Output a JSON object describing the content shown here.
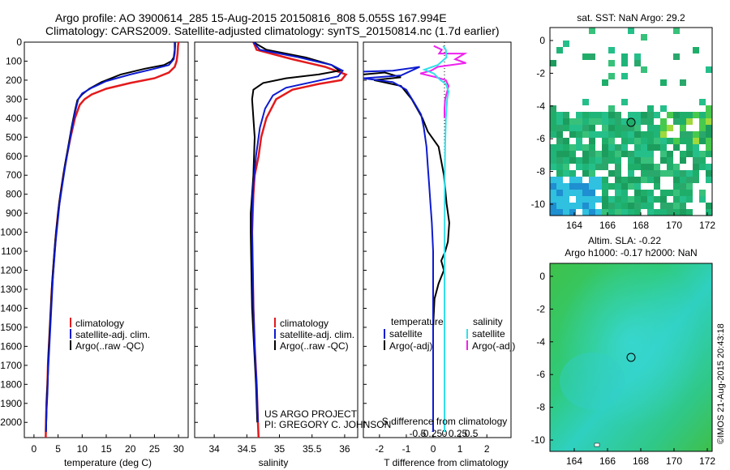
{
  "header": {
    "line1": "Argo profile: AO 3900614_285 15-Aug-2015 20150816_808 5.055S 167.994E",
    "line2": "Climatology: CARS2009. Satellite-adjusted climatology: synTS_20150814.nc (1.7d earlier)"
  },
  "colors": {
    "climatology": "#e31a1c",
    "satellite": "#0d1bd0",
    "argo": "#000000",
    "sal_sat": "#33e0ea",
    "sal_argo": "#ee22ee"
  },
  "depth_ticks": [
    "0",
    "100",
    "200",
    "300",
    "400",
    "500",
    "600",
    "700",
    "800",
    "900",
    "1000",
    "1100",
    "1200",
    "1300",
    "1400",
    "1500",
    "1600",
    "1700",
    "1800",
    "1900",
    "2000"
  ],
  "temperature_panel": {
    "xlabel": "temperature (deg C)",
    "xticks": [
      "0",
      "5",
      "10",
      "15",
      "20",
      "25",
      "30"
    ],
    "legend": [
      "climatology",
      "satellite-adj. clim.",
      "Argo(..raw -QC)"
    ]
  },
  "salinity_panel": {
    "xlabel": "salinity",
    "xticks": [
      "34",
      "34.5",
      "35",
      "35.5",
      "36"
    ],
    "legend": [
      "climatology",
      "satellite-adj. clim.",
      "Argo(..raw -QC)"
    ],
    "credit1": "US ARGO PROJECT",
    "credit2": "PI: GREGORY C. JOHNSON"
  },
  "difference_panel": {
    "xlabel": "T difference from climatology",
    "top_label": "S difference from climatology",
    "top_ticks": [
      "-0.5",
      "-0.25",
      "0",
      "0.25",
      "0.5"
    ],
    "xticks": [
      "-2",
      "-1",
      "0",
      "1",
      "2"
    ],
    "legend_temp_title": "temperature",
    "legend_sal_title": "salinity",
    "legend_temp": [
      "satellite",
      "Argo(-adj)"
    ],
    "legend_sal": [
      "satellite",
      "Argo(-adj)"
    ]
  },
  "sst_map": {
    "title": "sat. SST: NaN Argo: 29.2",
    "yticks": [
      "0",
      "-2",
      "-4",
      "-6",
      "-8",
      "-10"
    ],
    "xticks": [
      "164",
      "166",
      "168",
      "170",
      "172"
    ]
  },
  "sla_map": {
    "title1": "Altim. SLA: -0.22",
    "title2": "Argo h1000: -0.17 h2000: NaN",
    "yticks": [
      "0",
      "-2",
      "-4",
      "-6",
      "-8",
      "-10"
    ],
    "xticks": [
      "164",
      "166",
      "168",
      "170",
      "172"
    ]
  },
  "imos_stamp": "©IMOS 21-Aug-2015 20:43:18",
  "chart_data": [
    {
      "type": "line",
      "title": "",
      "xlabel": "temperature (deg C)",
      "ylabel": "",
      "xlim": [
        -2,
        32
      ],
      "ylim": [
        2080,
        0
      ],
      "series": [
        {
          "name": "climatology",
          "points": [
            [
              30,
              0
            ],
            [
              29.9,
              20
            ],
            [
              29.8,
              60
            ],
            [
              29.6,
              100
            ],
            [
              29.2,
              130
            ],
            [
              28,
              160
            ],
            [
              25,
              190
            ],
            [
              20,
              215
            ],
            [
              15,
              245
            ],
            [
              12,
              275
            ],
            [
              10.5,
              300
            ],
            [
              9.5,
              330
            ],
            [
              8.5,
              400
            ],
            [
              7.6,
              500
            ],
            [
              6.8,
              600
            ],
            [
              6.1,
              700
            ],
            [
              5.5,
              800
            ],
            [
              5,
              900
            ],
            [
              4.6,
              1000
            ],
            [
              4.3,
              1100
            ],
            [
              4,
              1200
            ],
            [
              3.7,
              1300
            ],
            [
              3.5,
              1400
            ],
            [
              3.3,
              1500
            ],
            [
              3.1,
              1600
            ],
            [
              2.9,
              1700
            ],
            [
              2.8,
              1800
            ],
            [
              2.6,
              1900
            ],
            [
              2.5,
              2000
            ],
            [
              2.45,
              2080
            ]
          ]
        },
        {
          "name": "satellite-adj. clim.",
          "points": [
            [
              29.3,
              0
            ],
            [
              29.3,
              20
            ],
            [
              29.2,
              60
            ],
            [
              29,
              90
            ],
            [
              28,
              120
            ],
            [
              25,
              140
            ],
            [
              20,
              170
            ],
            [
              15,
              205
            ],
            [
              12,
              240
            ],
            [
              10,
              270
            ],
            [
              9.2,
              300
            ],
            [
              8.6,
              360
            ],
            [
              7.9,
              450
            ],
            [
              7.2,
              550
            ],
            [
              6.5,
              650
            ],
            [
              5.9,
              750
            ],
            [
              5.3,
              850
            ],
            [
              4.9,
              950
            ],
            [
              4.5,
              1050
            ],
            [
              4.2,
              1150
            ],
            [
              3.9,
              1250
            ],
            [
              3.7,
              1350
            ],
            [
              3.5,
              1450
            ],
            [
              3.3,
              1550
            ],
            [
              3.1,
              1650
            ],
            [
              2.9,
              1750
            ],
            [
              2.8,
              1850
            ],
            [
              2.6,
              1950
            ],
            [
              2.5,
              2050
            ]
          ]
        },
        {
          "name": "Argo(..raw -QC)",
          "points": [
            [
              29.2,
              0
            ],
            [
              29.2,
              40
            ],
            [
              29,
              80
            ],
            [
              28.5,
              100
            ],
            [
              27,
              120
            ],
            [
              23,
              140
            ],
            [
              18,
              170
            ],
            [
              14,
              210
            ],
            [
              11.5,
              245
            ],
            [
              10,
              275
            ],
            [
              9,
              305
            ],
            [
              8.5,
              360
            ],
            [
              7.8,
              450
            ],
            [
              7.1,
              550
            ],
            [
              6.4,
              650
            ],
            [
              5.8,
              750
            ],
            [
              5.2,
              850
            ],
            [
              4.8,
              950
            ],
            [
              4.4,
              1050
            ],
            [
              4.1,
              1150
            ],
            [
              3.8,
              1250
            ],
            [
              3.6,
              1350
            ],
            [
              3.4,
              1450
            ],
            [
              3.2,
              1550
            ],
            [
              3,
              1650
            ],
            [
              2.9,
              1750
            ],
            [
              2.7,
              1850
            ],
            [
              2.6,
              1950
            ],
            [
              2.5,
              2050
            ]
          ]
        }
      ]
    },
    {
      "type": "line",
      "title": "",
      "xlabel": "salinity",
      "ylabel": "",
      "xlim": [
        33.7,
        36.2
      ],
      "ylim": [
        2080,
        0
      ],
      "series": [
        {
          "name": "climatology",
          "points": [
            [
              34.6,
              0
            ],
            [
              34.65,
              40
            ],
            [
              35.2,
              90
            ],
            [
              35.7,
              130
            ],
            [
              36.02,
              170
            ],
            [
              35.95,
              200
            ],
            [
              35.6,
              220
            ],
            [
              35.2,
              250
            ],
            [
              34.95,
              300
            ],
            [
              34.8,
              400
            ],
            [
              34.72,
              500
            ],
            [
              34.68,
              600
            ],
            [
              34.62,
              700
            ],
            [
              34.6,
              800
            ],
            [
              34.59,
              900
            ],
            [
              34.58,
              1000
            ],
            [
              34.59,
              1200
            ],
            [
              34.6,
              1400
            ],
            [
              34.62,
              1600
            ],
            [
              34.65,
              1800
            ],
            [
              34.67,
              2000
            ],
            [
              34.68,
              2080
            ]
          ]
        },
        {
          "name": "satellite-adj. clim.",
          "points": [
            [
              34.6,
              0
            ],
            [
              34.7,
              40
            ],
            [
              35.3,
              80
            ],
            [
              35.8,
              120
            ],
            [
              35.97,
              150
            ],
            [
              35.9,
              180
            ],
            [
              35.5,
              210
            ],
            [
              35.1,
              240
            ],
            [
              34.9,
              280
            ],
            [
              34.78,
              350
            ],
            [
              34.7,
              450
            ],
            [
              34.64,
              600
            ],
            [
              34.6,
              750
            ],
            [
              34.58,
              900
            ],
            [
              34.58,
              1000
            ],
            [
              34.59,
              1200
            ],
            [
              34.6,
              1400
            ],
            [
              34.62,
              1600
            ],
            [
              34.65,
              1800
            ],
            [
              34.67,
              2000
            ]
          ]
        },
        {
          "name": "Argo(..raw -QC)",
          "points": [
            [
              34.6,
              0
            ],
            [
              34.8,
              40
            ],
            [
              35.4,
              80
            ],
            [
              35.8,
              120
            ],
            [
              35.92,
              150
            ],
            [
              35.6,
              170
            ],
            [
              35.1,
              190
            ],
            [
              34.75,
              215
            ],
            [
              34.6,
              250
            ],
            [
              34.58,
              300
            ],
            [
              34.6,
              400
            ],
            [
              34.62,
              500
            ],
            [
              34.61,
              600
            ],
            [
              34.6,
              700
            ],
            [
              34.58,
              800
            ],
            [
              34.56,
              900
            ],
            [
              34.56,
              1000
            ],
            [
              34.57,
              1200
            ],
            [
              34.58,
              1400
            ],
            [
              34.61,
              1600
            ],
            [
              34.64,
              1800
            ],
            [
              34.66,
              2000
            ]
          ]
        }
      ]
    },
    {
      "type": "line",
      "title": "",
      "xlabel": "T difference from climatology",
      "ylabel": "",
      "xlim": [
        -2.6,
        2.9
      ],
      "ylim": [
        2080,
        0
      ],
      "series": [
        {
          "name": "temperature satellite",
          "points": [
            [
              -2.6,
              155
            ],
            [
              -1.5,
              150
            ],
            [
              -0.5,
              130
            ],
            [
              -1.2,
              175
            ],
            [
              -2.6,
              190
            ],
            [
              -1.5,
              210
            ],
            [
              -1,
              250
            ],
            [
              -0.7,
              320
            ],
            [
              -0.45,
              380
            ],
            [
              -0.35,
              450
            ],
            [
              -0.25,
              550
            ],
            [
              -0.2,
              650
            ],
            [
              -0.15,
              750
            ],
            [
              -0.1,
              850
            ],
            [
              -0.05,
              950
            ],
            [
              0,
              1100
            ],
            [
              0,
              1300
            ],
            [
              0,
              1500
            ],
            [
              0,
              1700
            ],
            [
              0,
              1900
            ],
            [
              0,
              2050
            ]
          ]
        },
        {
          "name": "temperature Argo(-adj)",
          "points": [
            [
              -2.6,
              170
            ],
            [
              -1.8,
              160
            ],
            [
              -1.2,
              185
            ],
            [
              -2.2,
              200
            ],
            [
              -1.2,
              230
            ],
            [
              -0.8,
              300
            ],
            [
              -0.4,
              400
            ],
            [
              -0.2,
              470
            ],
            [
              0.2,
              550
            ],
            [
              0.4,
              700
            ],
            [
              0.5,
              850
            ],
            [
              0.6,
              950
            ],
            [
              0.55,
              1050
            ],
            [
              0.45,
              1100
            ],
            [
              0.3,
              1150
            ],
            [
              0.4,
              1200
            ],
            [
              0.2,
              1270
            ],
            [
              0.05,
              1350
            ],
            [
              0,
              1500
            ],
            [
              0,
              1700
            ],
            [
              0,
              1900
            ],
            [
              0,
              2050
            ]
          ]
        },
        {
          "name": "salinity satellite",
          "points": [
            [
              -0.1,
              20
            ],
            [
              0.1,
              40
            ],
            [
              0.15,
              80
            ],
            [
              -0.5,
              120
            ],
            [
              -1.5,
              145
            ],
            [
              -0.8,
              165
            ],
            [
              -0.3,
              200
            ],
            [
              0.1,
              220
            ],
            [
              0.3,
              260
            ],
            [
              0.2,
              300
            ],
            [
              0.1,
              400
            ],
            [
              0.05,
              550
            ],
            [
              0.02,
              700
            ],
            [
              0.01,
              900
            ],
            [
              0,
              1100
            ],
            [
              0,
              1300
            ],
            [
              0,
              1500
            ],
            [
              0,
              1700
            ],
            [
              0,
              1900
            ],
            [
              0,
              2050
            ]
          ]
        },
        {
          "name": "salinity Argo(-adj)",
          "points": [
            [
              -0.8,
              20
            ],
            [
              -0.2,
              40
            ],
            [
              -0.4,
              60
            ],
            [
              1.5,
              60
            ],
            [
              0.8,
              90
            ],
            [
              1.6,
              110
            ],
            [
              -0.5,
              130
            ],
            [
              -1,
              150
            ],
            [
              -1.8,
              165
            ],
            [
              -0.6,
              185
            ],
            [
              0.1,
              200
            ],
            [
              0.3,
              230
            ],
            [
              0.2,
              260
            ],
            [
              0.05,
              300
            ],
            [
              0,
              350
            ],
            [
              0,
              400
            ]
          ]
        }
      ]
    }
  ]
}
